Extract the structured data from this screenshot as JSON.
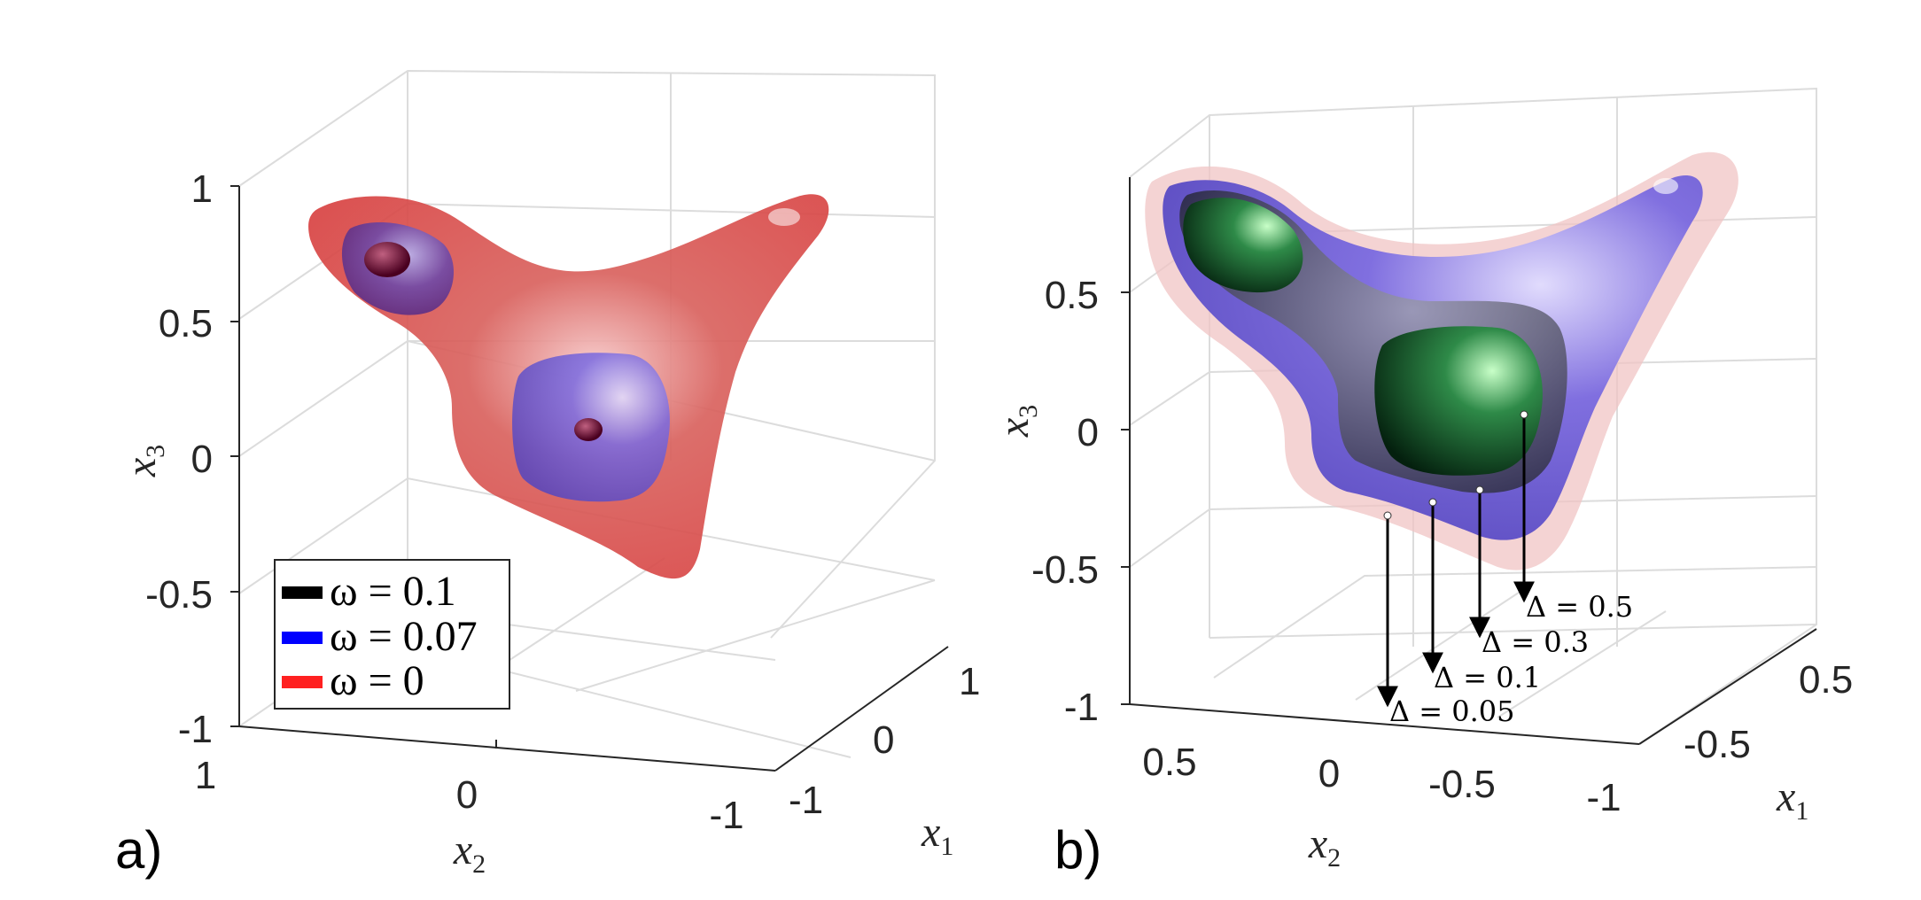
{
  "chart_data": [
    {
      "panel": "a)",
      "type": "isosurface-3d",
      "xlabel": "x_2",
      "ylabel": "x_1",
      "zlabel": "x_3",
      "axes": {
        "x2_ticks": [
          "1",
          "0",
          "-1"
        ],
        "x1_ticks": [
          "1",
          "0",
          "-1"
        ],
        "x3_ticks": [
          "1",
          "0.5",
          "0",
          "-0.5",
          "-1"
        ]
      },
      "grid": true,
      "legend_position": "bottom-left",
      "series": [
        {
          "name": "ω = 0.1",
          "color": "#000000"
        },
        {
          "name": "ω = 0.07",
          "color": "#0000ff"
        },
        {
          "name": "ω = 0",
          "color": "#ff2020"
        }
      ]
    },
    {
      "panel": "b)",
      "type": "isosurface-3d",
      "xlabel": "x_2",
      "ylabel": "x_1",
      "zlabel": "x_3",
      "axes": {
        "x2_ticks": [
          "0.5",
          "0",
          "-0.5",
          "-1"
        ],
        "x1_ticks": [
          "0.5",
          "-0.5"
        ],
        "x3_ticks": [
          "0.5",
          "0",
          "-0.5",
          "-1"
        ]
      },
      "grid": true,
      "annotations": [
        {
          "label": "Δ = 0.5"
        },
        {
          "label": "Δ = 0.3"
        },
        {
          "label": "Δ = 0.1"
        },
        {
          "label": "Δ = 0.05"
        }
      ],
      "surface_colors": [
        "#f0c0c0",
        "#6a5ad8",
        "#202040",
        "#0a4020"
      ]
    }
  ]
}
